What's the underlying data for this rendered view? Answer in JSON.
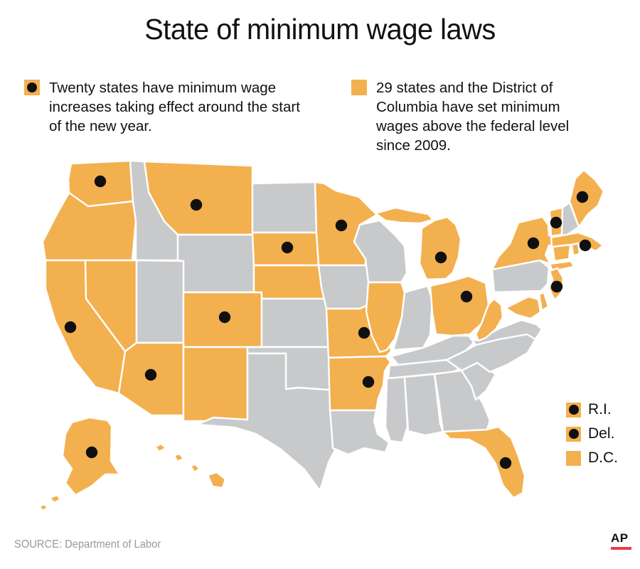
{
  "title": "State of minimum wage laws",
  "colors": {
    "above_federal": "#F3B04F",
    "other_state": "#C7C9CB",
    "dot": "#101010",
    "background": "#FFFFFF",
    "ap_red": "#EE3B40",
    "source_gray": "#97999B"
  },
  "legend": {
    "items": [
      {
        "text": "Twenty states have minimum wage increases taking effect around the start of the new year.",
        "swatch": "orange-square-with-black-dot"
      },
      {
        "text": "29 states and the District of Columbia have set minimum wages above the federal level since 2009.",
        "swatch": "orange-square"
      }
    ]
  },
  "mini_legend": {
    "items": [
      {
        "label": "R.I.",
        "dot": true
      },
      {
        "label": "Del.",
        "dot": true
      },
      {
        "label": "D.C.",
        "dot": false
      }
    ]
  },
  "footer": {
    "source": "SOURCE: Department of Labor",
    "logo": "AP"
  },
  "chart_data": {
    "type": "map",
    "title": "State of minimum wage laws",
    "counts": {
      "states_with_increase": 20,
      "states_above_federal_incl_dc": 30
    },
    "states": [
      {
        "abbr": "WA",
        "name": "Washington",
        "above_federal": true,
        "increase": true
      },
      {
        "abbr": "OR",
        "name": "Oregon",
        "above_federal": true,
        "increase": false
      },
      {
        "abbr": "CA",
        "name": "California",
        "above_federal": true,
        "increase": true
      },
      {
        "abbr": "NV",
        "name": "Nevada",
        "above_federal": true,
        "increase": false
      },
      {
        "abbr": "ID",
        "name": "Idaho",
        "above_federal": false,
        "increase": false
      },
      {
        "abbr": "MT",
        "name": "Montana",
        "above_federal": true,
        "increase": true
      },
      {
        "abbr": "WY",
        "name": "Wyoming",
        "above_federal": false,
        "increase": false
      },
      {
        "abbr": "UT",
        "name": "Utah",
        "above_federal": false,
        "increase": false
      },
      {
        "abbr": "CO",
        "name": "Colorado",
        "above_federal": true,
        "increase": true
      },
      {
        "abbr": "AZ",
        "name": "Arizona",
        "above_federal": true,
        "increase": true
      },
      {
        "abbr": "NM",
        "name": "New Mexico",
        "above_federal": true,
        "increase": false
      },
      {
        "abbr": "ND",
        "name": "North Dakota",
        "above_federal": false,
        "increase": false
      },
      {
        "abbr": "SD",
        "name": "South Dakota",
        "above_federal": true,
        "increase": true
      },
      {
        "abbr": "NE",
        "name": "Nebraska",
        "above_federal": true,
        "increase": false
      },
      {
        "abbr": "KS",
        "name": "Kansas",
        "above_federal": false,
        "increase": false
      },
      {
        "abbr": "OK",
        "name": "Oklahoma",
        "above_federal": false,
        "increase": false
      },
      {
        "abbr": "TX",
        "name": "Texas",
        "above_federal": false,
        "increase": false
      },
      {
        "abbr": "MN",
        "name": "Minnesota",
        "above_federal": true,
        "increase": true
      },
      {
        "abbr": "IA",
        "name": "Iowa",
        "above_federal": false,
        "increase": false
      },
      {
        "abbr": "MO",
        "name": "Missouri",
        "above_federal": true,
        "increase": true
      },
      {
        "abbr": "AR",
        "name": "Arkansas",
        "above_federal": true,
        "increase": true
      },
      {
        "abbr": "LA",
        "name": "Louisiana",
        "above_federal": false,
        "increase": false
      },
      {
        "abbr": "WI",
        "name": "Wisconsin",
        "above_federal": false,
        "increase": false
      },
      {
        "abbr": "IL",
        "name": "Illinois",
        "above_federal": true,
        "increase": false
      },
      {
        "abbr": "IN",
        "name": "Indiana",
        "above_federal": false,
        "increase": false
      },
      {
        "abbr": "OH",
        "name": "Ohio",
        "above_federal": true,
        "increase": true
      },
      {
        "abbr": "MI",
        "name": "Michigan",
        "above_federal": true,
        "increase": true
      },
      {
        "abbr": "KY",
        "name": "Kentucky",
        "above_federal": false,
        "increase": false
      },
      {
        "abbr": "TN",
        "name": "Tennessee",
        "above_federal": false,
        "increase": false
      },
      {
        "abbr": "MS",
        "name": "Mississippi",
        "above_federal": false,
        "increase": false
      },
      {
        "abbr": "AL",
        "name": "Alabama",
        "above_federal": false,
        "increase": false
      },
      {
        "abbr": "GA",
        "name": "Georgia",
        "above_federal": false,
        "increase": false
      },
      {
        "abbr": "FL",
        "name": "Florida",
        "above_federal": true,
        "increase": true
      },
      {
        "abbr": "SC",
        "name": "South Carolina",
        "above_federal": false,
        "increase": false
      },
      {
        "abbr": "NC",
        "name": "North Carolina",
        "above_federal": false,
        "increase": false
      },
      {
        "abbr": "VA",
        "name": "Virginia",
        "above_federal": false,
        "increase": false
      },
      {
        "abbr": "WV",
        "name": "West Virginia",
        "above_federal": true,
        "increase": false
      },
      {
        "abbr": "PA",
        "name": "Pennsylvania",
        "above_federal": false,
        "increase": false
      },
      {
        "abbr": "NY",
        "name": "New York",
        "above_federal": true,
        "increase": true
      },
      {
        "abbr": "NJ",
        "name": "New Jersey",
        "above_federal": true,
        "increase": true
      },
      {
        "abbr": "VT",
        "name": "Vermont",
        "above_federal": true,
        "increase": true
      },
      {
        "abbr": "NH",
        "name": "New Hampshire",
        "above_federal": false,
        "increase": false
      },
      {
        "abbr": "ME",
        "name": "Maine",
        "above_federal": true,
        "increase": true
      },
      {
        "abbr": "MA",
        "name": "Massachusetts",
        "above_federal": true,
        "increase": true
      },
      {
        "abbr": "CT",
        "name": "Connecticut",
        "above_federal": true,
        "increase": false
      },
      {
        "abbr": "RI",
        "name": "Rhode Island",
        "above_federal": true,
        "increase": true
      },
      {
        "abbr": "DE",
        "name": "Delaware",
        "above_federal": true,
        "increase": true
      },
      {
        "abbr": "MD",
        "name": "Maryland",
        "above_federal": true,
        "increase": false
      },
      {
        "abbr": "AK",
        "name": "Alaska",
        "above_federal": true,
        "increase": true
      },
      {
        "abbr": "HI",
        "name": "Hawaii",
        "above_federal": true,
        "increase": false
      }
    ]
  }
}
